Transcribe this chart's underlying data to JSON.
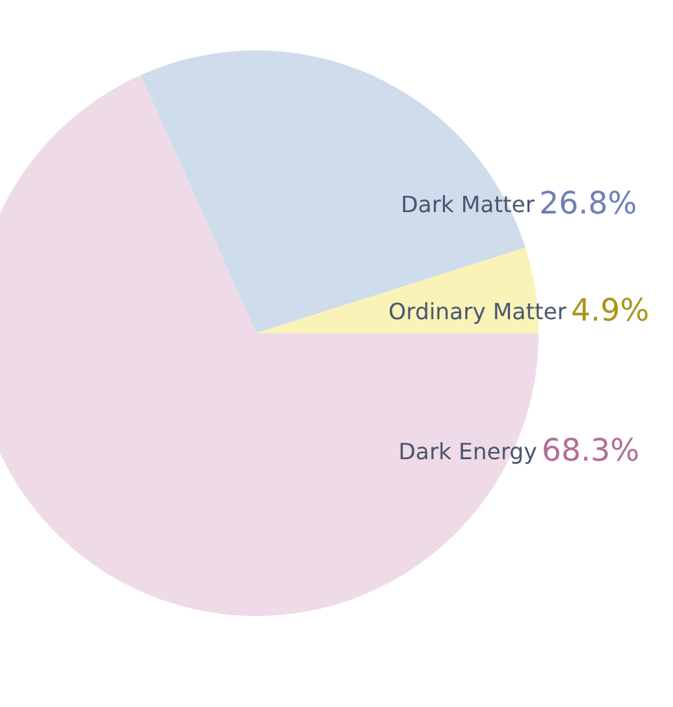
{
  "chart_data": {
    "type": "pie",
    "categories": [
      "Dark Matter",
      "Ordinary Matter",
      "Dark Energy"
    ],
    "values": [
      26.8,
      4.9,
      68.3
    ],
    "colors": [
      "#cfdcec",
      "#f9f3b8",
      "#eedbe7"
    ],
    "value_labels": [
      "26.8%",
      "4.9%",
      "68.3%"
    ],
    "legend": false
  }
}
